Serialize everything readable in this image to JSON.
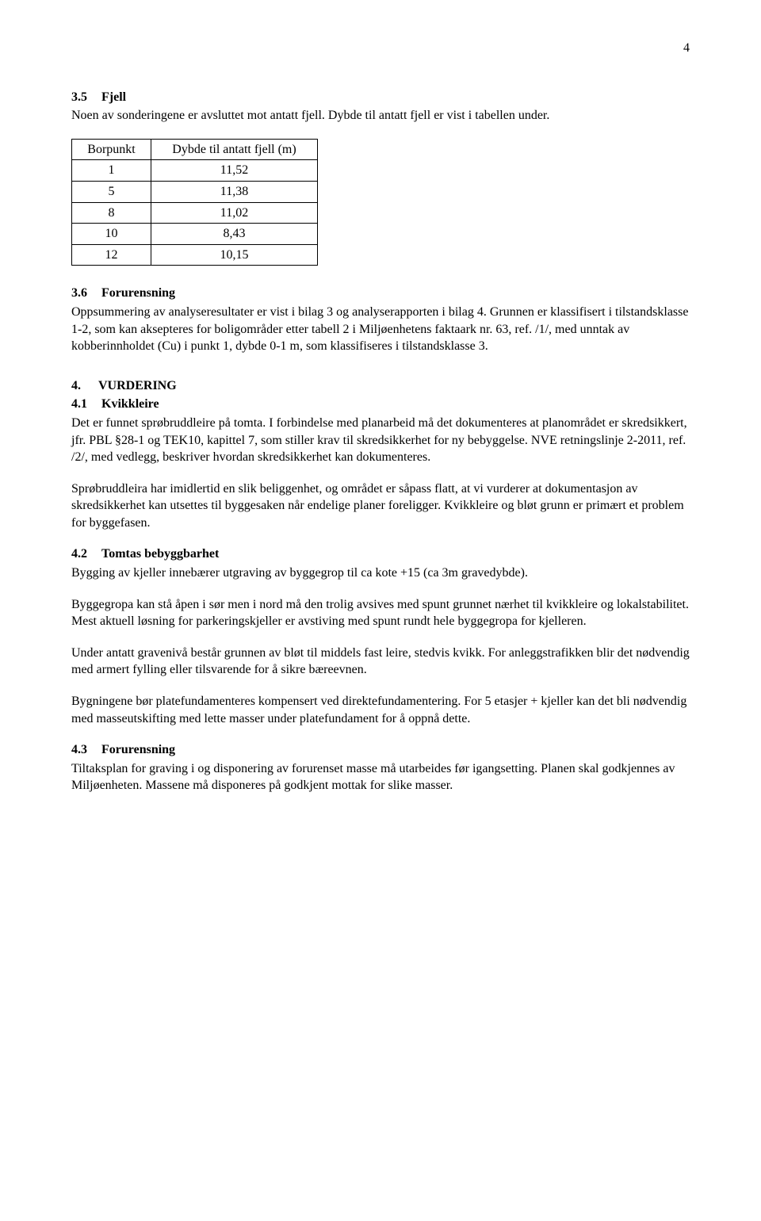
{
  "page_number": "4",
  "s35": {
    "num": "3.5",
    "title": "Fjell",
    "p1": "Noen av sonderingene er avsluttet mot antatt fjell. Dybde til antatt fjell er vist i tabellen under."
  },
  "table": {
    "h1": "Borpunkt",
    "h2": "Dybde til antatt fjell (m)",
    "rows": [
      {
        "c1": "1",
        "c2": "11,52"
      },
      {
        "c1": "5",
        "c2": "11,38"
      },
      {
        "c1": "8",
        "c2": "11,02"
      },
      {
        "c1": "10",
        "c2": "8,43"
      },
      {
        "c1": "12",
        "c2": "10,15"
      }
    ]
  },
  "s36": {
    "num": "3.6",
    "title": "Forurensning",
    "p1": "Oppsummering av analyseresultater er vist i bilag 3 og analyserapporten i bilag 4. Grunnen er klassifisert i tilstandsklasse 1-2, som kan aksepteres for boligområder etter tabell 2 i Miljøenhetens faktaark nr. 63, ref. /1/, med unntak av kobberinnholdet (Cu) i punkt 1, dybde 0-1 m, som klassifiseres i tilstandsklasse 3."
  },
  "s4": {
    "num": "4.",
    "title": "VURDERING"
  },
  "s41": {
    "num": "4.1",
    "title": "Kvikkleire",
    "p1": "Det er funnet sprøbruddleire på tomta. I forbindelse med planarbeid må det dokumenteres at planområdet er skredsikkert, jfr. PBL §28-1 og TEK10, kapittel 7, som stiller krav til skredsikkerhet for ny bebyggelse. NVE retningslinje 2-2011, ref. /2/, med vedlegg, beskriver hvordan skredsikkerhet kan dokumenteres.",
    "p2": "Sprøbruddleira har imidlertid en slik beliggenhet, og området er såpass flatt, at vi vurderer at dokumentasjon av skredsikkerhet kan utsettes til byggesaken når endelige planer foreligger. Kvikkleire og bløt grunn er primært et problem for byggefasen."
  },
  "s42": {
    "num": "4.2",
    "title": "Tomtas bebyggbarhet",
    "p1": "Bygging av kjeller innebærer utgraving av byggegrop til ca kote +15 (ca 3m gravedybde).",
    "p2": "Byggegropa kan stå åpen i sør men i nord må den trolig avsives med spunt grunnet nærhet til kvikkleire og lokalstabilitet. Mest aktuell løsning for parkeringskjeller er avstiving med spunt rundt hele byggegropa for kjelleren.",
    "p3": "Under antatt gravenivå består grunnen av bløt til middels fast leire, stedvis kvikk. For anleggstrafikken blir det nødvendig med armert fylling eller tilsvarende for å sikre bæreevnen.",
    "p4": "Bygningene bør platefundamenteres kompensert ved direktefundamentering. For 5 etasjer + kjeller kan det bli nødvendig med masseutskifting med lette masser under platefundament for å oppnå dette."
  },
  "s43": {
    "num": "4.3",
    "title": "Forurensning",
    "p1": "Tiltaksplan for graving i og disponering av forurenset masse må utarbeides før igangsetting. Planen skal godkjennes av Miljøenheten. Massene må disponeres på godkjent mottak for slike masser."
  }
}
